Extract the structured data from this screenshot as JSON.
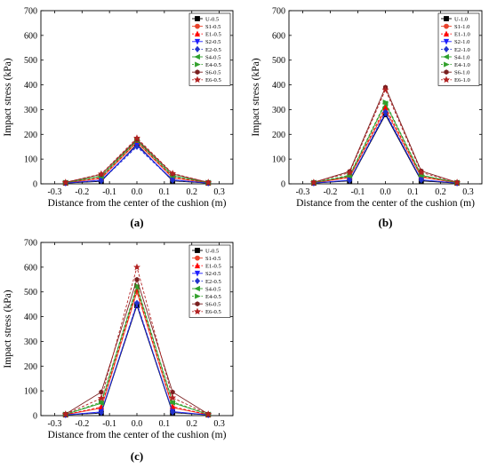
{
  "chart_data": [
    {
      "type": "line",
      "panel_label": "(a)",
      "xlabel": "Distance from the center of the cushion (m)",
      "ylabel": "Impact stress (kPa)",
      "xlim": [
        -0.35,
        0.35
      ],
      "ylim": [
        0,
        700
      ],
      "xticks": [
        -0.3,
        -0.2,
        -0.1,
        0.0,
        0.1,
        0.2,
        0.3
      ],
      "yticks": [
        0,
        100,
        200,
        300,
        400,
        500,
        600,
        700
      ],
      "grid": false,
      "legend": "top-right",
      "x": [
        -0.26,
        -0.13,
        0.0,
        0.13,
        0.26
      ],
      "series": [
        {
          "name": "U-0.5",
          "values": [
            3,
            10,
            160,
            12,
            3
          ],
          "color": "#000000",
          "marker": "square",
          "dash": "solid"
        },
        {
          "name": "S1-0.5",
          "values": [
            4,
            22,
            168,
            24,
            4
          ],
          "color": "#e8412a",
          "marker": "circle",
          "dash": "solid"
        },
        {
          "name": "E1-0.5",
          "values": [
            4,
            25,
            170,
            27,
            4
          ],
          "color": "#ff0000",
          "marker": "triangle-up",
          "dash": "dashed"
        },
        {
          "name": "S2-0.5",
          "values": [
            3,
            15,
            155,
            16,
            3
          ],
          "color": "#1f1fff",
          "marker": "triangle-down",
          "dash": "solid"
        },
        {
          "name": "E2-0.5",
          "values": [
            3,
            12,
            150,
            14,
            3
          ],
          "color": "#2233cc",
          "marker": "diamond",
          "dash": "dashed"
        },
        {
          "name": "S4-0.5",
          "values": [
            5,
            30,
            175,
            32,
            5
          ],
          "color": "#2ca02c",
          "marker": "triangle-left",
          "dash": "solid"
        },
        {
          "name": "E4-0.5",
          "values": [
            5,
            32,
            177,
            34,
            5
          ],
          "color": "#33a02c",
          "marker": "triangle-right",
          "dash": "dashed"
        },
        {
          "name": "S6-0.5",
          "values": [
            6,
            38,
            180,
            40,
            6
          ],
          "color": "#7a1f1f",
          "marker": "hexagon",
          "dash": "solid"
        },
        {
          "name": "E6-0.5",
          "values": [
            6,
            40,
            185,
            42,
            6
          ],
          "color": "#b22222",
          "marker": "star",
          "dash": "dashed"
        }
      ]
    },
    {
      "type": "line",
      "panel_label": "(b)",
      "xlabel": "Distance from the center of the cushion (m)",
      "ylabel": "Impact stress (kPa)",
      "xlim": [
        -0.35,
        0.35
      ],
      "ylim": [
        0,
        700
      ],
      "xticks": [
        -0.3,
        -0.2,
        -0.1,
        0.0,
        0.1,
        0.2,
        0.3
      ],
      "yticks": [
        0,
        100,
        200,
        300,
        400,
        500,
        600,
        700
      ],
      "grid": false,
      "legend": "top-right",
      "x": [
        -0.26,
        -0.13,
        0.0,
        0.13,
        0.26
      ],
      "series": [
        {
          "name": "U-1.0",
          "values": [
            3,
            12,
            280,
            12,
            3
          ],
          "color": "#000000",
          "marker": "square",
          "dash": "solid"
        },
        {
          "name": "S1-1.0",
          "values": [
            4,
            25,
            300,
            27,
            4
          ],
          "color": "#e8412a",
          "marker": "circle",
          "dash": "solid"
        },
        {
          "name": "E1-1.0",
          "values": [
            4,
            28,
            310,
            30,
            4
          ],
          "color": "#ff0000",
          "marker": "triangle-up",
          "dash": "dashed"
        },
        {
          "name": "S2-1.0",
          "values": [
            3,
            15,
            285,
            16,
            3
          ],
          "color": "#1f1fff",
          "marker": "triangle-down",
          "dash": "solid"
        },
        {
          "name": "E2-1.0",
          "values": [
            3,
            14,
            290,
            15,
            3
          ],
          "color": "#2233cc",
          "marker": "diamond",
          "dash": "dashed"
        },
        {
          "name": "S4-1.0",
          "values": [
            5,
            32,
            325,
            34,
            5
          ],
          "color": "#2ca02c",
          "marker": "triangle-left",
          "dash": "solid"
        },
        {
          "name": "E4-1.0",
          "values": [
            5,
            35,
            330,
            36,
            5
          ],
          "color": "#33a02c",
          "marker": "triangle-right",
          "dash": "dashed"
        },
        {
          "name": "S6-1.0",
          "values": [
            6,
            50,
            390,
            52,
            6
          ],
          "color": "#7a1f1f",
          "marker": "hexagon",
          "dash": "solid"
        },
        {
          "name": "E6-1.0",
          "values": [
            6,
            45,
            380,
            46,
            6
          ],
          "color": "#b22222",
          "marker": "star",
          "dash": "dashed"
        }
      ]
    },
    {
      "type": "line",
      "panel_label": "(c)",
      "xlabel": "Distance from the center of the cushion (m)",
      "ylabel": "Impact stress (kPa)",
      "xlim": [
        -0.35,
        0.35
      ],
      "ylim": [
        0,
        700
      ],
      "xticks": [
        -0.3,
        -0.2,
        -0.1,
        0.0,
        0.1,
        0.2,
        0.3
      ],
      "yticks": [
        0,
        100,
        200,
        300,
        400,
        500,
        600,
        700
      ],
      "grid": false,
      "legend": "top-right",
      "x": [
        -0.26,
        -0.13,
        0.0,
        0.13,
        0.26
      ],
      "series": [
        {
          "name": "U-0.5",
          "values": [
            3,
            10,
            445,
            12,
            3
          ],
          "color": "#000000",
          "marker": "square",
          "dash": "solid"
        },
        {
          "name": "S1-0.5",
          "values": [
            4,
            30,
            500,
            32,
            4
          ],
          "color": "#e8412a",
          "marker": "circle",
          "dash": "solid"
        },
        {
          "name": "E1-0.5",
          "values": [
            4,
            35,
            510,
            36,
            4
          ],
          "color": "#ff0000",
          "marker": "triangle-up",
          "dash": "dashed"
        },
        {
          "name": "S2-0.5",
          "values": [
            3,
            15,
            450,
            16,
            3
          ],
          "color": "#1f1fff",
          "marker": "triangle-down",
          "dash": "solid"
        },
        {
          "name": "E2-0.5",
          "values": [
            3,
            12,
            455,
            14,
            3
          ],
          "color": "#2233cc",
          "marker": "diamond",
          "dash": "dashed"
        },
        {
          "name": "S4-0.5",
          "values": [
            5,
            50,
            520,
            52,
            5
          ],
          "color": "#2ca02c",
          "marker": "triangle-left",
          "dash": "solid"
        },
        {
          "name": "E4-0.5",
          "values": [
            5,
            55,
            525,
            56,
            5
          ],
          "color": "#33a02c",
          "marker": "triangle-right",
          "dash": "dashed"
        },
        {
          "name": "S6-0.5",
          "values": [
            6,
            95,
            550,
            95,
            6
          ],
          "color": "#7a1f1f",
          "marker": "hexagon",
          "dash": "solid"
        },
        {
          "name": "E6-0.5",
          "values": [
            6,
            70,
            600,
            72,
            6
          ],
          "color": "#b22222",
          "marker": "star",
          "dash": "dashed"
        }
      ]
    }
  ]
}
